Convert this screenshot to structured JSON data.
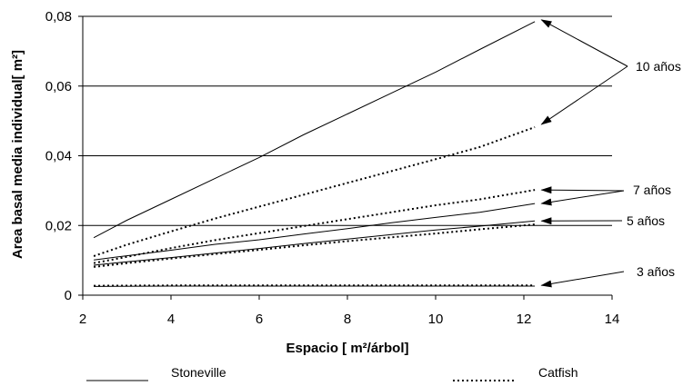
{
  "chart_data": {
    "type": "line",
    "xlabel": "Espacio [ m²/árbol]",
    "ylabel": "Area basal media individual[ m²]",
    "xlim": [
      2,
      14
    ],
    "ylim": [
      0,
      0.08
    ],
    "x_ticks": [
      2,
      4,
      6,
      8,
      10,
      12,
      14
    ],
    "y_ticks": [
      0,
      0.02,
      0.04,
      0.06,
      0.08
    ],
    "y_tick_labels": [
      "0",
      "0,02",
      "0,04",
      "0,06",
      "0,08"
    ],
    "x_tick_labels": [
      "2",
      "4",
      "6",
      "8",
      "10",
      "12",
      "14"
    ],
    "grid": "horizontal",
    "legend_position": "bottom",
    "legend": [
      {
        "label": "Stoneville",
        "style": "solid"
      },
      {
        "label": "Catfish",
        "style": "dotted"
      }
    ],
    "series": [
      {
        "name": "Stoneville",
        "age": "10 años",
        "style": "solid",
        "x": [
          2.25,
          3,
          4,
          5,
          6,
          7,
          8,
          9,
          10,
          11,
          12.25
        ],
        "y": [
          0.0165,
          0.0215,
          0.0275,
          0.0335,
          0.0395,
          0.046,
          0.052,
          0.058,
          0.064,
          0.0705,
          0.0785
        ]
      },
      {
        "name": "Catfish",
        "age": "10 años",
        "style": "dotted",
        "x": [
          2.25,
          3,
          4,
          5,
          6,
          7,
          8,
          9,
          10,
          11,
          12.25
        ],
        "y": [
          0.0112,
          0.0145,
          0.0183,
          0.022,
          0.0254,
          0.0288,
          0.0322,
          0.0356,
          0.039,
          0.0425,
          0.0482
        ]
      },
      {
        "name": "Catfish",
        "age": "7 años",
        "style": "dotted",
        "x": [
          2.25,
          3,
          4,
          5,
          6,
          7,
          8,
          9,
          10,
          11,
          12.25
        ],
        "y": [
          0.0092,
          0.011,
          0.0135,
          0.0158,
          0.0178,
          0.0198,
          0.0218,
          0.0238,
          0.0258,
          0.0275,
          0.0302
        ]
      },
      {
        "name": "Stoneville",
        "age": "7 años",
        "style": "solid",
        "x": [
          2.25,
          3,
          4,
          5,
          6,
          7,
          8,
          9,
          10,
          11,
          12.25
        ],
        "y": [
          0.0101,
          0.0113,
          0.0129,
          0.0146,
          0.0159,
          0.0175,
          0.0191,
          0.0208,
          0.0223,
          0.0238,
          0.0263
        ]
      },
      {
        "name": "Stoneville",
        "age": "5 años",
        "style": "solid",
        "x": [
          2.25,
          3,
          4,
          5,
          6,
          7,
          8,
          9,
          10,
          11,
          12.25
        ],
        "y": [
          0.0086,
          0.0096,
          0.0108,
          0.0121,
          0.0134,
          0.0148,
          0.0161,
          0.0174,
          0.0187,
          0.0198,
          0.0213
        ]
      },
      {
        "name": "Catfish",
        "age": "5 años",
        "style": "dotted",
        "x": [
          2.25,
          3,
          4,
          5,
          6,
          7,
          8,
          9,
          10,
          11,
          12.25
        ],
        "y": [
          0.0081,
          0.0092,
          0.0105,
          0.0118,
          0.013,
          0.0143,
          0.0155,
          0.0166,
          0.0177,
          0.0189,
          0.0203
        ]
      },
      {
        "name": "Stoneville",
        "age": "3 años",
        "style": "solid",
        "x": [
          2.25,
          4,
          6,
          8,
          10,
          12.25
        ],
        "y": [
          0.0025,
          0.0026,
          0.0026,
          0.0026,
          0.0026,
          0.0026
        ]
      },
      {
        "name": "Catfish",
        "age": "3 años",
        "style": "dotted",
        "x": [
          2.25,
          4,
          6,
          8,
          10,
          12.25
        ],
        "y": [
          0.0027,
          0.0028,
          0.0028,
          0.0028,
          0.0028,
          0.0028
        ]
      }
    ],
    "annotations": [
      {
        "text": "10 años",
        "targets": [
          [
            12.4,
            0.079
          ],
          [
            12.4,
            0.049
          ]
        ]
      },
      {
        "text": "7 años",
        "targets": [
          [
            12.4,
            0.0302
          ],
          [
            12.4,
            0.0263
          ]
        ]
      },
      {
        "text": "5 años",
        "targets": [
          [
            12.4,
            0.0213
          ]
        ]
      },
      {
        "text": "3 años",
        "targets": [
          [
            12.4,
            0.0028
          ]
        ]
      }
    ]
  }
}
